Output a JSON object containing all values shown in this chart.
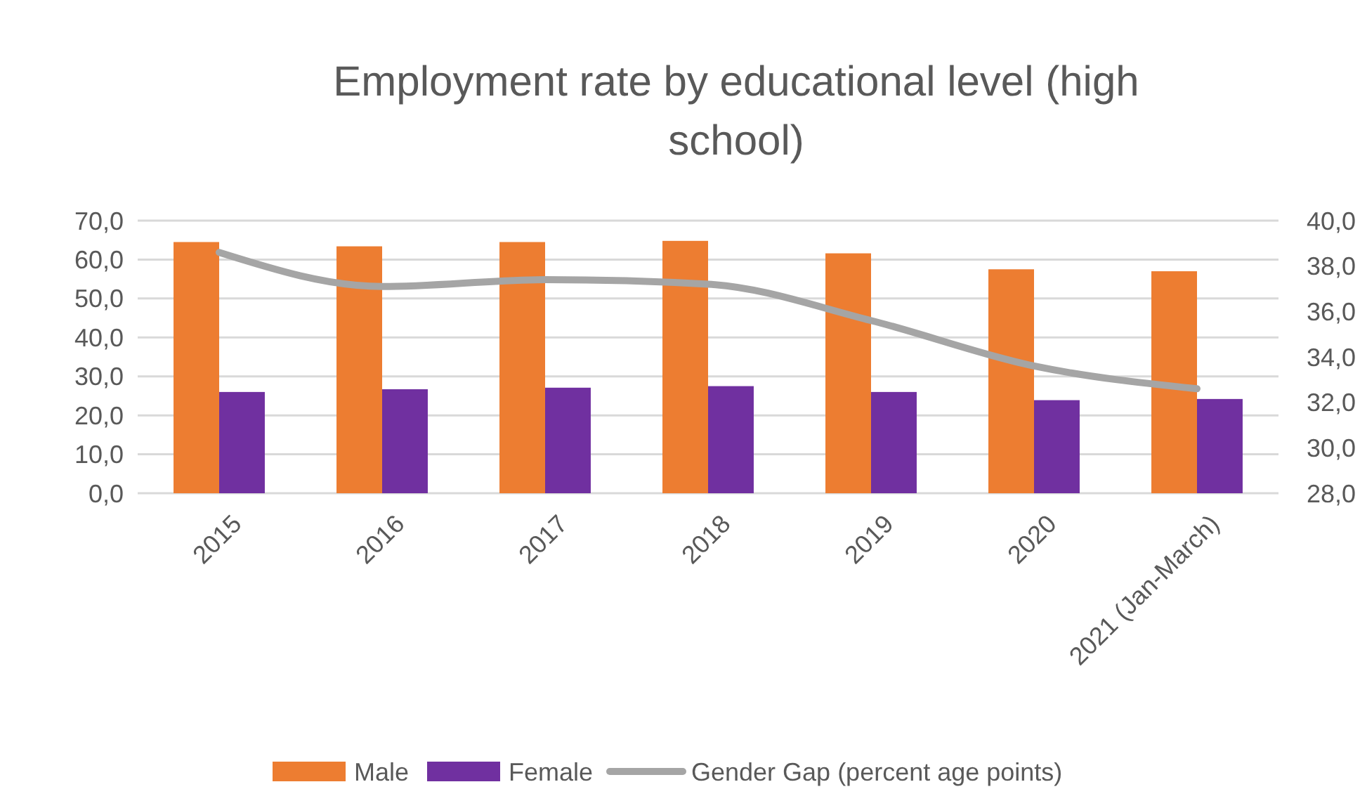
{
  "chart_data": {
    "type": "bar",
    "title": "Employment rate by educational level (high school)",
    "categories": [
      "2015",
      "2016",
      "2017",
      "2018",
      "2019",
      "2020",
      "2021 (Jan-March)"
    ],
    "series": [
      {
        "name": "Male",
        "color": "#ed7d31",
        "values": [
          64.5,
          63.4,
          64.5,
          64.8,
          61.6,
          57.5,
          57.0
        ]
      },
      {
        "name": "Female",
        "color": "#7030a0",
        "values": [
          26.0,
          26.7,
          27.1,
          27.5,
          26.0,
          23.9,
          24.2
        ]
      },
      {
        "name": "Gender Gap (percent age points)",
        "type": "line",
        "axis": "y2",
        "color": "#a5a5a5",
        "values": [
          38.6,
          37.1,
          37.4,
          37.2,
          35.6,
          33.6,
          32.6
        ]
      }
    ],
    "ylim": [
      0,
      70
    ],
    "yticks": [
      {
        "value": 0,
        "label": "0,0"
      },
      {
        "value": 10,
        "label": "10,0"
      },
      {
        "value": 20,
        "label": "20,0"
      },
      {
        "value": 30,
        "label": "30,0"
      },
      {
        "value": 40,
        "label": "40,0"
      },
      {
        "value": 50,
        "label": "50,0"
      },
      {
        "value": 60,
        "label": "60,0"
      },
      {
        "value": 70,
        "label": "70,0"
      }
    ],
    "y2lim": [
      28,
      40
    ],
    "y2ticks": [
      {
        "value": 28,
        "label": "28,0"
      },
      {
        "value": 30,
        "label": "30,0"
      },
      {
        "value": 32,
        "label": "32,0"
      },
      {
        "value": 34,
        "label": "34,0"
      },
      {
        "value": 36,
        "label": "36,0"
      },
      {
        "value": 38,
        "label": "38,0"
      },
      {
        "value": 40,
        "label": "40,0"
      }
    ],
    "grid": "y",
    "legend": "bottom",
    "marker": "none",
    "line_style": "solid"
  }
}
